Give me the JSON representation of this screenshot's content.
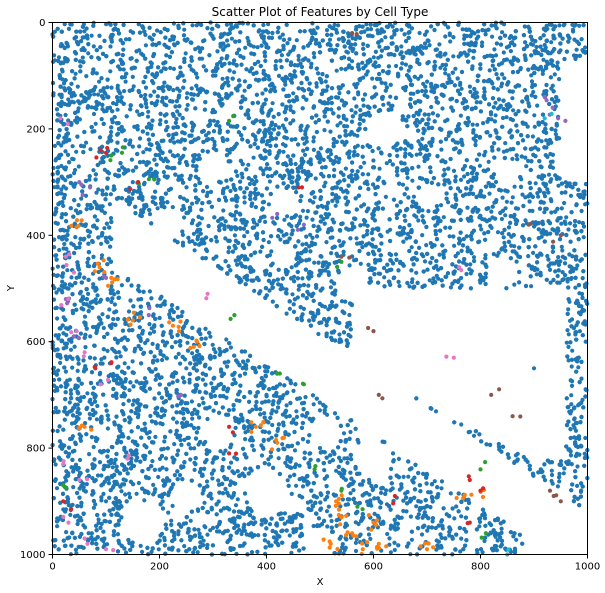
{
  "chart_data": {
    "type": "scatter",
    "title": "Scatter Plot of Features by Cell Type",
    "xlabel": "X",
    "ylabel": "Y",
    "xlim": [
      0,
      1000
    ],
    "ylim": [
      1000,
      0
    ],
    "y_axis_inverted": true,
    "x_ticks": [
      "0",
      "200",
      "400",
      "600",
      "800",
      "1000"
    ],
    "y_ticks": [
      "0",
      "200",
      "400",
      "600",
      "800",
      "1000"
    ],
    "grid": false,
    "legend": "none",
    "point_density": "dense, roughly 11000 points",
    "empty_regions": [
      "diagonal white channel from about (100, 350) to (1000, 980)",
      "white band from about (560, 500) to (1000, 800)",
      "scattered small round holes"
    ],
    "series": [
      {
        "color": "#1f77b4",
        "description": "majority type, fills most of the tissue",
        "points": [
          [
            120,
            60
          ],
          [
            300,
            100
          ],
          [
            600,
            80
          ],
          [
            800,
            150
          ],
          [
            450,
            250
          ],
          [
            700,
            300
          ],
          [
            380,
            400
          ],
          [
            650,
            450
          ],
          [
            870,
            350
          ],
          [
            40,
            150
          ],
          [
            150,
            300
          ],
          [
            250,
            650
          ],
          [
            400,
            700
          ],
          [
            500,
            800
          ],
          [
            700,
            850
          ],
          [
            100,
            900
          ],
          [
            300,
            950
          ],
          [
            900,
            650
          ]
        ]
      },
      {
        "color": "#ff7f0e",
        "description": "concentrated lower left, bottom center cluster near (550, 950)",
        "points": [
          [
            45,
            385
          ],
          [
            88,
            460
          ],
          [
            110,
            480
          ],
          [
            150,
            560
          ],
          [
            225,
            570
          ],
          [
            270,
            600
          ],
          [
            60,
            760
          ],
          [
            380,
            760
          ],
          [
            420,
            790
          ],
          [
            530,
            900
          ],
          [
            540,
            930
          ],
          [
            560,
            960
          ],
          [
            580,
            990
          ],
          [
            520,
            980
          ],
          [
            600,
            940
          ],
          [
            610,
            980
          ],
          [
            700,
            990
          ],
          [
            800,
            880
          ],
          [
            770,
            890
          ]
        ]
      },
      {
        "color": "#2ca02c",
        "description": "sparse, scattered",
        "points": [
          [
            110,
            250
          ],
          [
            130,
            245
          ],
          [
            190,
            295
          ],
          [
            330,
            185
          ],
          [
            340,
            550
          ],
          [
            420,
            660
          ],
          [
            540,
            450
          ],
          [
            470,
            680
          ],
          [
            490,
            840
          ],
          [
            540,
            880
          ],
          [
            570,
            910
          ],
          [
            800,
            840
          ],
          [
            810,
            960
          ],
          [
            20,
            870
          ],
          [
            160,
            300
          ]
        ]
      },
      {
        "color": "#d62728",
        "description": "sparse, scattered",
        "points": [
          [
            90,
            240
          ],
          [
            100,
            245
          ],
          [
            160,
            300
          ],
          [
            460,
            310
          ],
          [
            780,
            860
          ],
          [
            800,
            880
          ],
          [
            780,
            940
          ],
          [
            80,
            650
          ],
          [
            110,
            640
          ],
          [
            330,
            760
          ],
          [
            20,
            900
          ],
          [
            330,
            810
          ],
          [
            640,
            890
          ]
        ]
      },
      {
        "color": "#9467bd",
        "description": "sparse, mostly left edge and right side",
        "points": [
          [
            50,
            300
          ],
          [
            70,
            310
          ],
          [
            180,
            550
          ],
          [
            240,
            700
          ],
          [
            420,
            360
          ],
          [
            470,
            380
          ],
          [
            920,
            140
          ],
          [
            935,
            160
          ],
          [
            945,
            180
          ],
          [
            100,
            480
          ],
          [
            25,
            520
          ],
          [
            40,
            590
          ]
        ]
      },
      {
        "color": "#8c564b",
        "description": "sparse, isolated points",
        "points": [
          [
            560,
            20
          ],
          [
            540,
            440
          ],
          [
            600,
            580
          ],
          [
            610,
            700
          ],
          [
            820,
            700
          ],
          [
            890,
            380
          ],
          [
            950,
            900
          ],
          [
            930,
            880
          ],
          [
            860,
            740
          ],
          [
            950,
            400
          ]
        ]
      },
      {
        "color": "#e377c2",
        "description": "left edge, lower left",
        "points": [
          [
            15,
            180
          ],
          [
            25,
            440
          ],
          [
            40,
            470
          ],
          [
            30,
            520
          ],
          [
            45,
            580
          ],
          [
            60,
            620
          ],
          [
            90,
            680
          ],
          [
            20,
            830
          ],
          [
            50,
            860
          ],
          [
            30,
            940
          ],
          [
            60,
            970
          ],
          [
            100,
            990
          ],
          [
            140,
            820
          ],
          [
            290,
            510
          ],
          [
            760,
            460
          ],
          [
            750,
            630
          ]
        ]
      },
      {
        "color": "#17becf",
        "description": "very sparse",
        "points": [
          [
            850,
            1000
          ],
          [
            920,
            180
          ]
        ]
      }
    ]
  }
}
